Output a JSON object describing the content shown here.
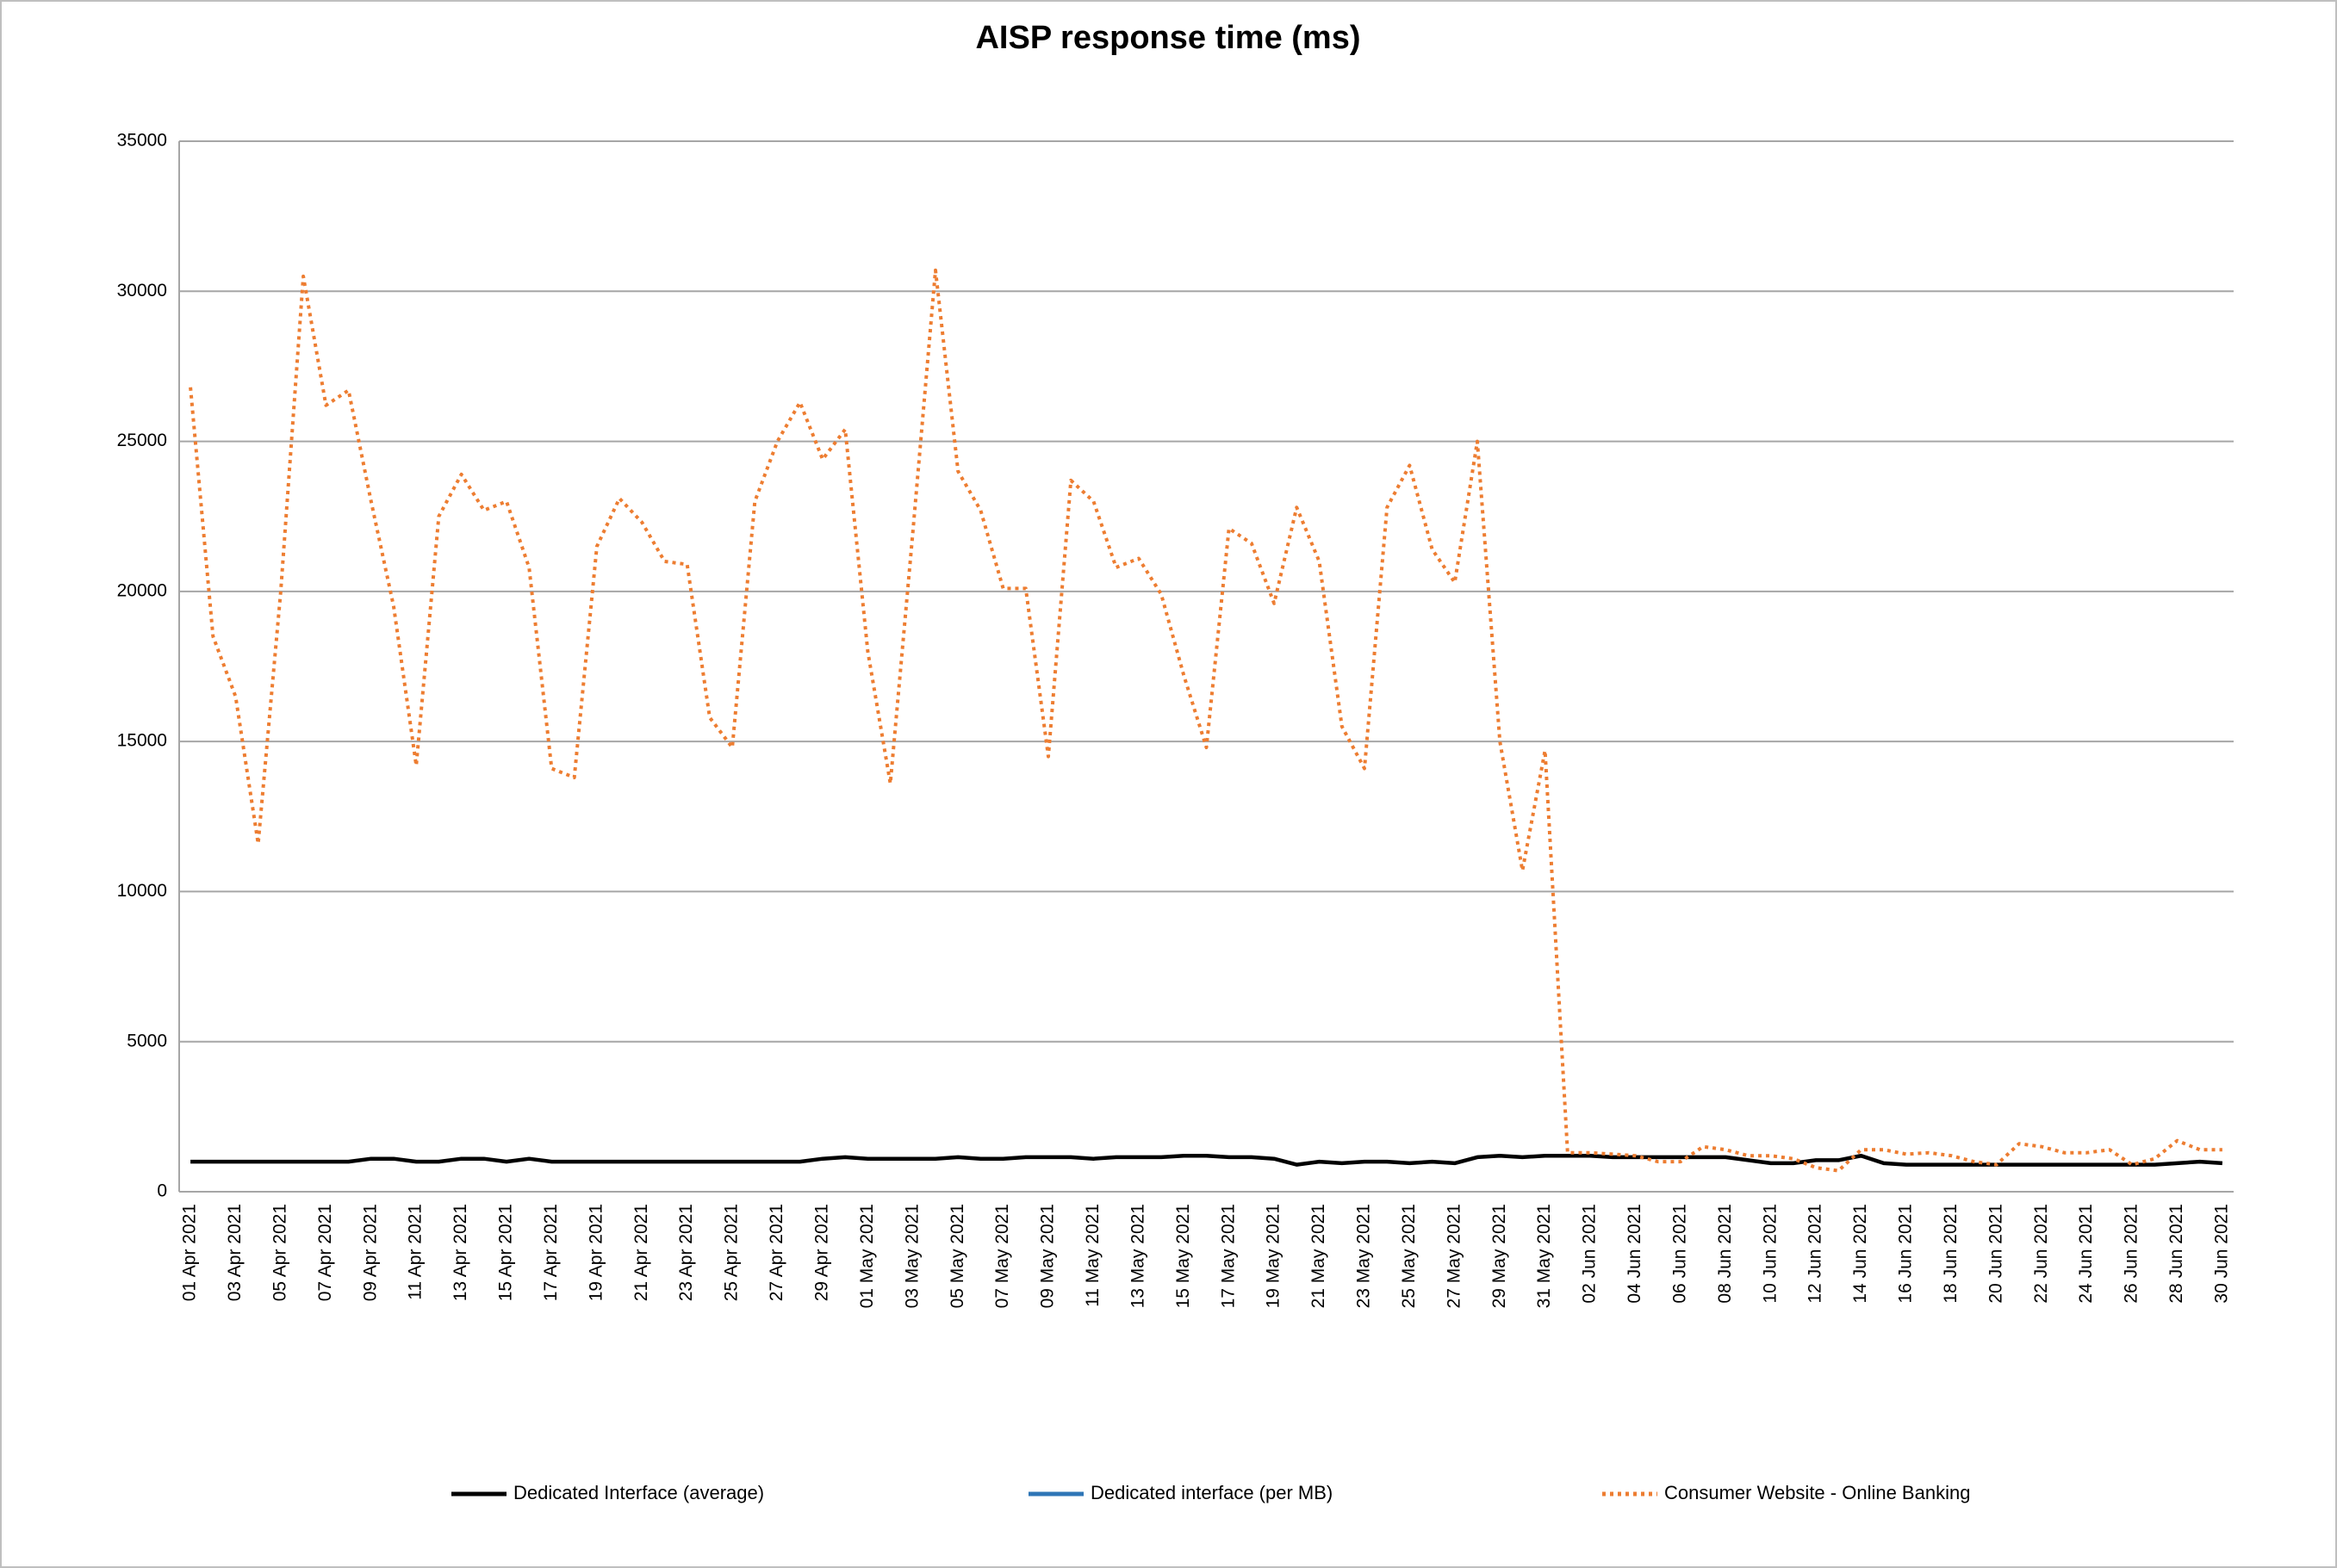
{
  "chart_data": {
    "type": "line",
    "title": "AISP response time (ms)",
    "categories": [
      "01 Apr 2021",
      null,
      "03 Apr 2021",
      null,
      "05 Apr 2021",
      null,
      "07 Apr 2021",
      null,
      "09 Apr 2021",
      null,
      "11 Apr 2021",
      null,
      "13 Apr 2021",
      null,
      "15 Apr 2021",
      null,
      "17 Apr 2021",
      null,
      "19 Apr 2021",
      null,
      "21 Apr 2021",
      null,
      "23 Apr 2021",
      null,
      "25 Apr 2021",
      null,
      "27 Apr 2021",
      null,
      "29 Apr 2021",
      null,
      "01 May 2021",
      null,
      "03 May 2021",
      null,
      "05 May 2021",
      null,
      "07 May 2021",
      null,
      "09 May 2021",
      null,
      "11 May 2021",
      null,
      "13 May 2021",
      null,
      "15 May 2021",
      null,
      "17 May 2021",
      null,
      "19 May 2021",
      null,
      "21 May 2021",
      null,
      "23 May 2021",
      null,
      "25 May 2021",
      null,
      "27 May 2021",
      null,
      "29 May 2021",
      null,
      "31 May 2021",
      null,
      "02 Jun 2021",
      null,
      "04 Jun 2021",
      null,
      "06 Jun 2021",
      null,
      "08 Jun 2021",
      null,
      "10 Jun 2021",
      null,
      "12 Jun 2021",
      null,
      "14 Jun 2021",
      null,
      "16 Jun 2021",
      null,
      "18 Jun 2021",
      null,
      "20 Jun 2021",
      null,
      "22 Jun 2021",
      null,
      "24 Jun 2021",
      null,
      "26 Jun 2021",
      null,
      "28 Jun 2021",
      null,
      "30 Jun 2021"
    ],
    "series": [
      {
        "name": "Dedicated Interface (average)",
        "color": "#000000",
        "dash": "solid",
        "values": [
          1000,
          1000,
          1000,
          1000,
          1000,
          1000,
          1000,
          1000,
          1100,
          1100,
          1000,
          1000,
          1100,
          1100,
          1000,
          1100,
          1000,
          1000,
          1000,
          1000,
          1000,
          1000,
          1000,
          1000,
          1000,
          1000,
          1000,
          1000,
          1100,
          1150,
          1100,
          1100,
          1100,
          1100,
          1150,
          1100,
          1100,
          1150,
          1150,
          1150,
          1100,
          1150,
          1150,
          1150,
          1200,
          1200,
          1150,
          1150,
          1100,
          900,
          1000,
          950,
          1000,
          1000,
          950,
          1000,
          950,
          1150,
          1200,
          1150,
          1200,
          1200,
          1200,
          1150,
          1150,
          1150,
          1150,
          1150,
          1150,
          1050,
          950,
          950,
          1050,
          1050,
          1200,
          950,
          900,
          900,
          900,
          900,
          900,
          900,
          900,
          900,
          900,
          900,
          900,
          900,
          950,
          1000,
          950
        ]
      },
      {
        "name": "Dedicated interface (per MB)",
        "color": "#2e75b6",
        "dash": "solid",
        "values": [
          null,
          null,
          null,
          null,
          null,
          null,
          null,
          null,
          null,
          null,
          null,
          null,
          null,
          null,
          null,
          null,
          null,
          null,
          null,
          null,
          null,
          null,
          null,
          null,
          null,
          null,
          null,
          null,
          null,
          null,
          null,
          null,
          null,
          null,
          null,
          null,
          null,
          null,
          null,
          null,
          null,
          null,
          null,
          null,
          null,
          null,
          null,
          null,
          null,
          null,
          null,
          null,
          null,
          null,
          null,
          null,
          null,
          null,
          null,
          null,
          null,
          null,
          null,
          null,
          null,
          null,
          null,
          null,
          null,
          null,
          null,
          null,
          null,
          null,
          null,
          null,
          null,
          null,
          null,
          null,
          null,
          null,
          null,
          null,
          null,
          null,
          null,
          null,
          null,
          null,
          null
        ]
      },
      {
        "name": "Consumer Website - Online Banking",
        "color": "#ed7d31",
        "dash": "dotted",
        "values": [
          26800,
          18500,
          16500,
          11600,
          20000,
          30500,
          26200,
          26700,
          23000,
          19500,
          14200,
          22500,
          23900,
          22700,
          23000,
          20800,
          14100,
          13800,
          21500,
          23100,
          22300,
          21000,
          20900,
          15800,
          14800,
          23000,
          25000,
          26300,
          24400,
          25400,
          18000,
          13600,
          22000,
          30700,
          24000,
          22700,
          20100,
          20100,
          14500,
          23700,
          23000,
          20800,
          21100,
          19900,
          17200,
          14800,
          22100,
          21600,
          19600,
          22800,
          21000,
          15500,
          14100,
          22800,
          24200,
          21400,
          20300,
          25000,
          15000,
          10700,
          14700,
          1300,
          1300,
          1250,
          1200,
          1000,
          1000,
          1500,
          1400,
          1200,
          1200,
          1100,
          800,
          700,
          1400,
          1400,
          1250,
          1300,
          1200,
          1000,
          900,
          1600,
          1500,
          1300,
          1300,
          1400,
          900,
          1100,
          1700,
          1400,
          1400
        ]
      }
    ],
    "ylim": [
      0,
      35000
    ],
    "yticks": [
      0,
      5000,
      10000,
      15000,
      20000,
      25000,
      30000,
      35000
    ],
    "grid": true,
    "legend": "bottom"
  }
}
